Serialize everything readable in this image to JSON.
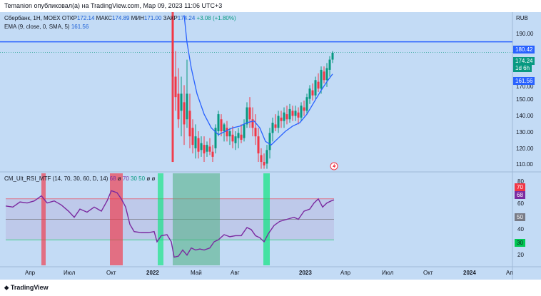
{
  "header": {
    "published": "Temanion опубликовал(а) на TradingView.com, Мар 09, 2023 11:06 UTC+3"
  },
  "main_legend": {
    "symbol": "Сбербанк, 1Н, MOEX",
    "open_label": "ОТКР",
    "open": "172.14",
    "high_label": "МАКС",
    "high": "174.89",
    "low_label": "МИН",
    "low": "171.00",
    "close_label": "ЗАКР",
    "close": "174.24",
    "change": "+3.08 (+1.80%)"
  },
  "ema_legend": {
    "label": "EMA (9, close, 0, SMA, 5)",
    "value": "161.56"
  },
  "rsi_legend": {
    "label": "CM_Ult_RSI_MTF (14, 70, 30, 60, D, 14)",
    "v1": "68",
    "v2": "ø",
    "v3": "70",
    "v4": "30",
    "v5": "50",
    "v6": "ø",
    "v7": "ø"
  },
  "price_axis": {
    "currency": "RUB",
    "ticks": [
      "190.00",
      "170.00",
      "150.00",
      "140.00",
      "130.00",
      "120.00",
      "110.00"
    ],
    "hline_tag": "180.42",
    "last_price_tag": "174.24",
    "last_price_time": "1d 6h",
    "ema_tag": "161.56"
  },
  "rsi_axis": {
    "ticks": [
      "80",
      "60",
      "40",
      "20"
    ],
    "tag_70": "70",
    "tag_68": "68",
    "tag_50": "50",
    "tag_30": "30"
  },
  "time_axis": {
    "labels": [
      "Апр",
      "Июл",
      "Окт",
      "2022",
      "Май",
      "Авг",
      "2023",
      "Апр",
      "Июл",
      "Окт",
      "2024",
      "Ап"
    ]
  },
  "footer": {
    "brand": "TradingView"
  },
  "colors": {
    "bg": "#c3dbf5",
    "up": "#089981",
    "down": "#f23645",
    "ema": "#2962ff",
    "rsi": "#7b2aa0",
    "hline": "#2962ff"
  },
  "chart_data": {
    "type": "candlestick",
    "price_range": [
      105,
      197
    ],
    "ema_value": 161.56,
    "hline": 180.42,
    "last_close": 174.24,
    "rsi_last": 68,
    "rsi_levels": [
      70,
      50,
      30
    ]
  }
}
